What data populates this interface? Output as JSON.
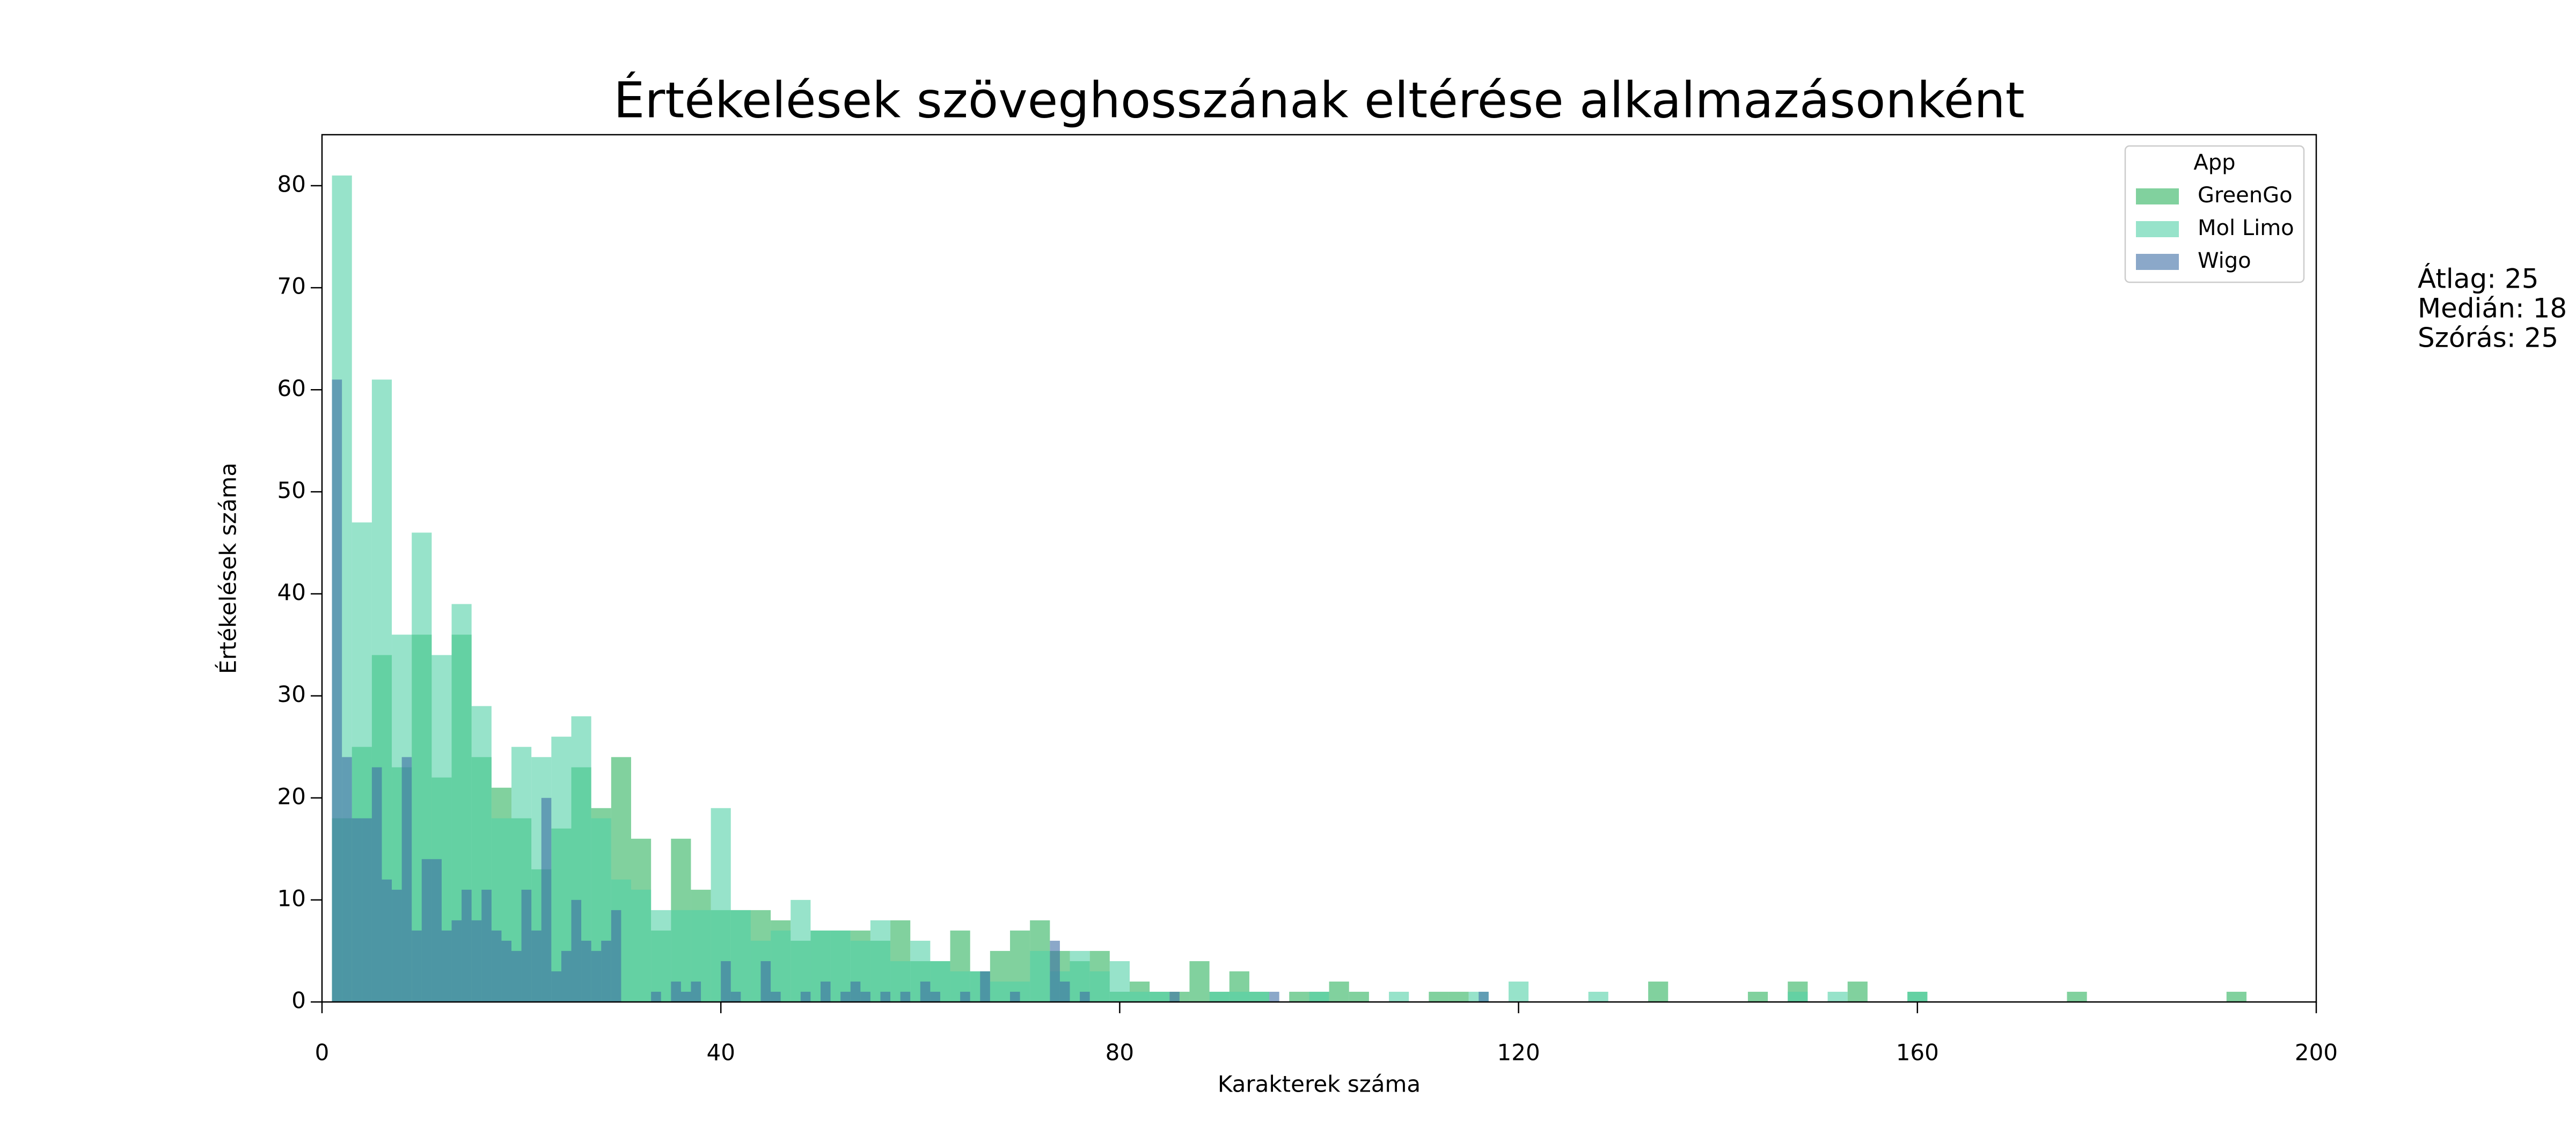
{
  "chart_data": {
    "type": "histogram",
    "title": "Értékelések szöveghosszának eltérése alkalmazásonként",
    "x_label": "Karakterek száma",
    "y_label": "Értékelések száma",
    "xlim": [
      0,
      200
    ],
    "xticks": [
      0,
      40,
      80,
      120,
      160,
      200
    ],
    "ylim": [
      0,
      85
    ],
    "yticks": [
      0,
      10,
      20,
      30,
      40,
      50,
      60,
      70,
      80
    ],
    "alpha": 0.6,
    "legend_title": "App",
    "legend": "upper right",
    "annotations": [
      "Átlag: 25",
      "Medián: 18",
      "Szórás: 25"
    ],
    "series": [
      {
        "name": "GreenGo",
        "color": "#2db35d",
        "bins": [
          1,
          3,
          5,
          7,
          9,
          11,
          13,
          15,
          17,
          19,
          21,
          23,
          25,
          27,
          29,
          31,
          33,
          35,
          37,
          39,
          41,
          43,
          45,
          47,
          49,
          51,
          53,
          55,
          57,
          59,
          61,
          63,
          65,
          67,
          69,
          71,
          73,
          75,
          77,
          79,
          81,
          83,
          85,
          87,
          89,
          91,
          93,
          95,
          97,
          99,
          101,
          103,
          105,
          107,
          109,
          111,
          113,
          115,
          117,
          119,
          121,
          123,
          125,
          127,
          129,
          131,
          133,
          135,
          137,
          139,
          141,
          143,
          145,
          147,
          149,
          151,
          153,
          155,
          157,
          159,
          161,
          163,
          165,
          167,
          169,
          171,
          173,
          175,
          177,
          179,
          181,
          183,
          185,
          187,
          189,
          191,
          193
        ],
        "values": [
          18,
          25,
          34,
          23,
          36,
          22,
          36,
          24,
          21,
          18,
          13,
          17,
          23,
          19,
          24,
          16,
          7,
          16,
          11,
          9,
          9,
          9,
          8,
          6,
          7,
          7,
          7,
          6,
          8,
          4,
          4,
          7,
          3,
          5,
          7,
          8,
          5,
          4,
          5,
          1,
          2,
          1,
          1,
          4,
          1,
          3,
          1,
          0,
          1,
          1,
          2,
          1,
          0,
          0,
          0,
          1,
          1,
          0,
          0,
          0,
          0,
          0,
          0,
          0,
          0,
          0,
          2,
          0,
          0,
          0,
          0,
          1,
          0,
          2,
          0,
          0,
          2,
          0,
          0,
          1,
          0,
          0,
          0,
          0,
          0,
          0,
          0,
          1,
          0,
          0,
          0,
          0,
          0,
          0,
          0,
          1
        ]
      },
      {
        "name": "Mol Limo",
        "color": "#52d1a6",
        "bins": [
          1,
          3,
          5,
          7,
          9,
          11,
          13,
          15,
          17,
          19,
          21,
          23,
          25,
          27,
          29,
          31,
          33,
          35,
          37,
          39,
          41,
          43,
          45,
          47,
          49,
          51,
          53,
          55,
          57,
          59,
          61,
          63,
          65,
          67,
          69,
          71,
          73,
          75,
          77,
          79,
          81,
          83,
          85,
          87,
          89,
          91,
          93,
          95,
          97,
          99,
          101,
          103,
          105,
          107,
          109,
          111,
          113,
          115,
          117,
          119,
          121,
          123,
          125,
          127,
          129,
          131,
          133,
          135,
          137,
          139,
          141,
          143,
          145,
          147,
          149,
          151,
          153,
          155,
          157,
          159,
          161
        ],
        "values": [
          81,
          47,
          61,
          36,
          46,
          34,
          39,
          29,
          18,
          25,
          24,
          26,
          28,
          18,
          12,
          11,
          9,
          9,
          9,
          19,
          9,
          6,
          7,
          10,
          7,
          7,
          6,
          8,
          4,
          6,
          4,
          3,
          3,
          2,
          2,
          5,
          3,
          5,
          3,
          4,
          1,
          1,
          0,
          0,
          1,
          1,
          1,
          0,
          0,
          1,
          0,
          0,
          0,
          1,
          0,
          0,
          0,
          1,
          0,
          2,
          0,
          0,
          0,
          1,
          0,
          0,
          0,
          0,
          0,
          0,
          0,
          0,
          0,
          1,
          0,
          1,
          0,
          0,
          0,
          1
        ]
      },
      {
        "name": "Wigo",
        "color": "#3d6ea5",
        "bins": [
          1,
          2,
          3,
          4,
          5,
          6,
          7,
          8,
          9,
          10,
          11,
          12,
          13,
          14,
          15,
          16,
          17,
          18,
          19,
          20,
          21,
          22,
          23,
          24,
          25,
          26,
          27,
          28,
          29,
          30,
          31,
          32,
          33,
          34,
          35,
          36,
          37,
          38,
          39,
          40,
          41,
          42,
          43,
          44,
          45,
          46,
          47,
          48,
          49,
          50,
          51,
          52,
          53,
          54,
          55,
          56,
          57,
          58,
          59,
          60,
          61,
          62,
          63,
          64,
          65,
          66,
          67,
          68,
          69,
          70,
          71,
          72,
          73,
          74,
          75,
          76,
          77,
          78,
          79,
          80,
          81,
          82,
          83,
          84,
          85,
          86,
          87,
          88,
          89,
          90,
          91,
          92,
          93,
          94,
          95,
          96,
          97,
          98,
          99,
          100,
          101,
          102,
          103,
          104,
          105,
          106,
          107,
          108,
          109,
          110,
          111,
          112,
          113,
          114,
          115,
          116,
          117,
          118
        ],
        "values": [
          61,
          24,
          18,
          18,
          23,
          12,
          11,
          24,
          7,
          14,
          14,
          7,
          8,
          11,
          8,
          11,
          7,
          6,
          5,
          11,
          7,
          20,
          3,
          5,
          10,
          6,
          5,
          6,
          9,
          0,
          0,
          0,
          1,
          0,
          2,
          1,
          2,
          0,
          0,
          4,
          1,
          0,
          0,
          4,
          1,
          0,
          0,
          1,
          0,
          2,
          0,
          1,
          2,
          1,
          0,
          1,
          0,
          1,
          0,
          2,
          1,
          0,
          0,
          1,
          0,
          3,
          0,
          0,
          1,
          0,
          0,
          0,
          6,
          2,
          0,
          1,
          0,
          0,
          0,
          0,
          0,
          0,
          0,
          0,
          1,
          0,
          0,
          0,
          0,
          0,
          0,
          0,
          0,
          0,
          1,
          0,
          0,
          0,
          0,
          0,
          0,
          0,
          0,
          0,
          0,
          0,
          0,
          0,
          0,
          0,
          0,
          0,
          0,
          0,
          0,
          1,
          0
        ]
      }
    ]
  }
}
